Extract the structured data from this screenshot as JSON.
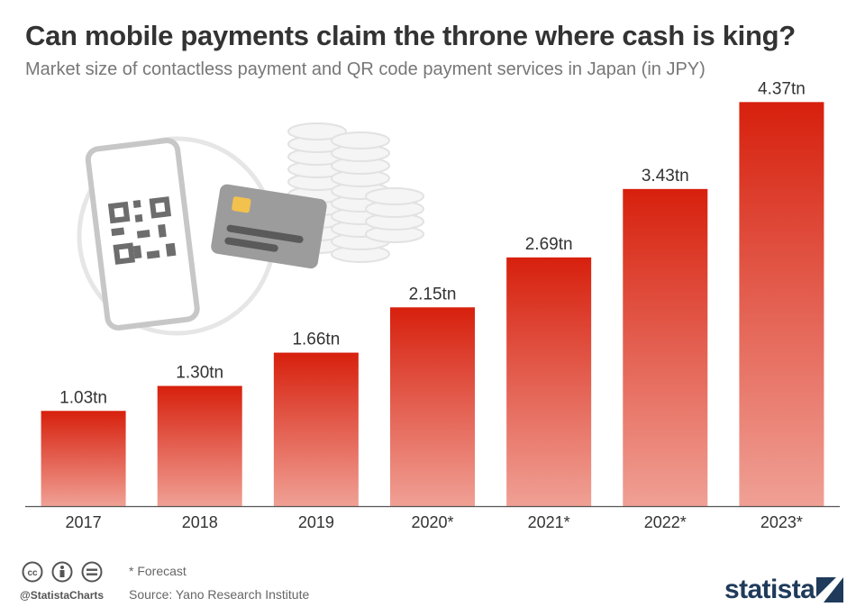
{
  "header": {
    "title": "Can mobile payments claim the throne where cash is king?",
    "subtitle": "Market size of contactless payment and QR code payment services in Japan (in JPY)"
  },
  "chart_data": {
    "type": "bar",
    "title": "Can mobile payments claim the throne where cash is king?",
    "subtitle": "Market size of contactless payment and QR code payment services in Japan (in JPY)",
    "categories": [
      "2017",
      "2018",
      "2019",
      "2020*",
      "2021*",
      "2022*",
      "2023*"
    ],
    "values": [
      1.03,
      1.3,
      1.66,
      2.15,
      2.69,
      3.43,
      4.37
    ],
    "data_labels": [
      "1.03tn",
      "1.30tn",
      "1.66tn",
      "2.15tn",
      "2.69tn",
      "3.43tn",
      "4.37tn"
    ],
    "ylim": [
      0,
      4.5
    ],
    "grid": false,
    "colors": {
      "bar_top": "#d7200d",
      "bar_bottom": "#f0a095",
      "axis": "#555555"
    }
  },
  "footer": {
    "note": "* Forecast",
    "source": "Source: Yano Research Institute",
    "handle": "@StatistaCharts",
    "brand": "statista",
    "license_icons": [
      "cc-icon",
      "attribution-icon",
      "no-derivatives-icon"
    ]
  },
  "illustration": {
    "icons": [
      "smartphone-qr-icon",
      "credit-card-icon",
      "coin-stacks-icon"
    ]
  }
}
